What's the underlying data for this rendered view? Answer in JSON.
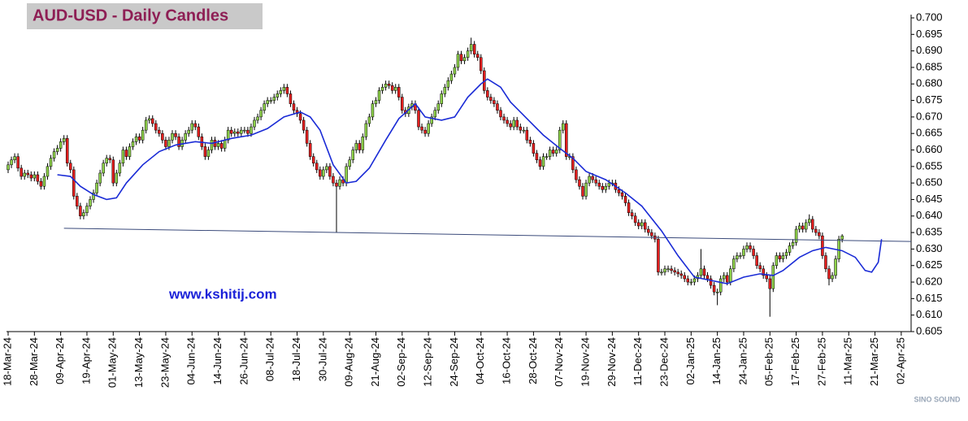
{
  "chart_data": {
    "type": "candlestick",
    "title": "AUD-USD - Daily Candles",
    "annotation": "www.kshitij.com",
    "watermark": "SINO SOUND",
    "up_color": "#8ed14a",
    "down_color": "#e41f1f",
    "open": [
      0.654,
      0.6555,
      0.657,
      0.658,
      0.6545,
      0.652,
      0.653,
      0.6525,
      0.6515,
      0.6525,
      0.6505,
      0.649,
      0.652,
      0.655,
      0.6575,
      0.6595,
      0.6605,
      0.6625,
      0.6635,
      0.656,
      0.654,
      0.646,
      0.643,
      0.64,
      0.641,
      0.643,
      0.645,
      0.647,
      0.65,
      0.653,
      0.656,
      0.6575,
      0.657,
      0.65,
      0.653,
      0.656,
      0.66,
      0.658,
      0.661,
      0.6625,
      0.664,
      0.663,
      0.666,
      0.669,
      0.6695,
      0.668,
      0.666,
      0.665,
      0.663,
      0.661,
      0.663,
      0.665,
      0.664,
      0.661,
      0.663,
      0.665,
      0.666,
      0.668,
      0.667,
      0.664,
      0.661,
      0.658,
      0.66,
      0.663,
      0.661,
      0.662,
      0.6605,
      0.663,
      0.666,
      0.665,
      0.6655,
      0.665,
      0.666,
      0.666,
      0.665,
      0.667,
      0.669,
      0.67,
      0.672,
      0.674,
      0.675,
      0.675,
      0.676,
      0.677,
      0.678,
      0.679,
      0.677,
      0.674,
      0.672,
      0.671,
      0.669,
      0.666,
      0.662,
      0.658,
      0.656,
      0.654,
      0.652,
      0.654,
      0.655,
      0.652,
      0.65,
      0.649,
      0.651,
      0.65,
      0.655,
      0.657,
      0.66,
      0.662,
      0.66,
      0.664,
      0.668,
      0.67,
      0.674,
      0.675,
      0.678,
      0.679,
      0.68,
      0.6795,
      0.678,
      0.679,
      0.676,
      0.672,
      0.671,
      0.673,
      0.674,
      0.672,
      0.667,
      0.666,
      0.665,
      0.668,
      0.67,
      0.672,
      0.674,
      0.677,
      0.679,
      0.681,
      0.683,
      0.685,
      0.689,
      0.687,
      0.688,
      0.69,
      0.692,
      0.689,
      0.688,
      0.684,
      0.678,
      0.676,
      0.675,
      0.674,
      0.672,
      0.67,
      0.669,
      0.668,
      0.667,
      0.669,
      0.667,
      0.666,
      0.666,
      0.663,
      0.662,
      0.659,
      0.657,
      0.655,
      0.658,
      0.658,
      0.66,
      0.659,
      0.66,
      0.666,
      0.668,
      0.658,
      0.658,
      0.654,
      0.651,
      0.649,
      0.646,
      0.65,
      0.652,
      0.651,
      0.65,
      0.649,
      0.648,
      0.649,
      0.65,
      0.65,
      0.648,
      0.647,
      0.646,
      0.644,
      0.641,
      0.64,
      0.638,
      0.637,
      0.638,
      0.636,
      0.635,
      0.634,
      0.633,
      0.623,
      0.623,
      0.624,
      0.624,
      0.6235,
      0.623,
      0.6225,
      0.622,
      0.621,
      0.62,
      0.62,
      0.621,
      0.622,
      0.624,
      0.622,
      0.621,
      0.619,
      0.617,
      0.617,
      0.621,
      0.622,
      0.62,
      0.624,
      0.627,
      0.628,
      0.628,
      0.63,
      0.631,
      0.63,
      0.628,
      0.625,
      0.624,
      0.622,
      0.621,
      0.618,
      0.625,
      0.628,
      0.627,
      0.628,
      0.629,
      0.631,
      0.632,
      0.636,
      0.637,
      0.636,
      0.638,
      0.639,
      0.636,
      0.635,
      0.634,
      0.628,
      0.624,
      0.621,
      0.622,
      0.627,
      0.633
    ],
    "high": [
      0.6565,
      0.658,
      0.659,
      0.659,
      0.6555,
      0.654,
      0.654,
      0.6535,
      0.6535,
      0.6535,
      0.6515,
      0.653,
      0.656,
      0.6585,
      0.6605,
      0.6615,
      0.6635,
      0.6645,
      0.6645,
      0.657,
      0.655,
      0.647,
      0.644,
      0.642,
      0.644,
      0.646,
      0.648,
      0.651,
      0.654,
      0.657,
      0.6585,
      0.6585,
      0.658,
      0.654,
      0.657,
      0.661,
      0.661,
      0.662,
      0.6635,
      0.665,
      0.665,
      0.667,
      0.67,
      0.6705,
      0.6705,
      0.669,
      0.667,
      0.666,
      0.664,
      0.664,
      0.666,
      0.666,
      0.665,
      0.664,
      0.666,
      0.667,
      0.669,
      0.669,
      0.668,
      0.665,
      0.662,
      0.661,
      0.664,
      0.664,
      0.663,
      0.663,
      0.664,
      0.667,
      0.667,
      0.6665,
      0.6665,
      0.667,
      0.667,
      0.667,
      0.668,
      0.67,
      0.671,
      0.673,
      0.675,
      0.676,
      0.676,
      0.677,
      0.678,
      0.679,
      0.68,
      0.68,
      0.678,
      0.675,
      0.673,
      0.672,
      0.67,
      0.667,
      0.663,
      0.659,
      0.657,
      0.655,
      0.655,
      0.656,
      0.656,
      0.653,
      0.651,
      0.652,
      0.652,
      0.656,
      0.658,
      0.661,
      0.663,
      0.663,
      0.665,
      0.669,
      0.671,
      0.675,
      0.676,
      0.679,
      0.68,
      0.681,
      0.681,
      0.6805,
      0.68,
      0.68,
      0.677,
      0.673,
      0.674,
      0.675,
      0.675,
      0.673,
      0.668,
      0.667,
      0.669,
      0.671,
      0.673,
      0.675,
      0.678,
      0.68,
      0.682,
      0.684,
      0.686,
      0.69,
      0.69,
      0.689,
      0.691,
      0.694,
      0.693,
      0.69,
      0.689,
      0.685,
      0.679,
      0.677,
      0.676,
      0.675,
      0.673,
      0.671,
      0.67,
      0.669,
      0.67,
      0.67,
      0.668,
      0.667,
      0.667,
      0.664,
      0.663,
      0.66,
      0.658,
      0.659,
      0.659,
      0.661,
      0.661,
      0.661,
      0.667,
      0.669,
      0.669,
      0.659,
      0.659,
      0.655,
      0.652,
      0.65,
      0.651,
      0.653,
      0.653,
      0.652,
      0.651,
      0.65,
      0.65,
      0.651,
      0.651,
      0.651,
      0.649,
      0.648,
      0.647,
      0.645,
      0.642,
      0.641,
      0.639,
      0.639,
      0.639,
      0.637,
      0.636,
      0.635,
      0.634,
      0.624,
      0.625,
      0.625,
      0.625,
      0.6245,
      0.624,
      0.6235,
      0.623,
      0.622,
      0.621,
      0.622,
      0.623,
      0.63,
      0.625,
      0.623,
      0.622,
      0.62,
      0.618,
      0.622,
      0.623,
      0.623,
      0.625,
      0.628,
      0.629,
      0.629,
      0.631,
      0.632,
      0.632,
      0.631,
      0.629,
      0.626,
      0.625,
      0.623,
      0.622,
      0.626,
      0.629,
      0.629,
      0.629,
      0.63,
      0.632,
      0.633,
      0.637,
      0.638,
      0.638,
      0.639,
      0.6405,
      0.64,
      0.637,
      0.636,
      0.635,
      0.629,
      0.625,
      0.623,
      0.628,
      0.634,
      0.6345
    ],
    "low": [
      0.653,
      0.6545,
      0.656,
      0.6535,
      0.651,
      0.651,
      0.6515,
      0.6505,
      0.6505,
      0.6495,
      0.648,
      0.648,
      0.651,
      0.654,
      0.6565,
      0.6585,
      0.6595,
      0.6615,
      0.655,
      0.653,
      0.645,
      0.642,
      0.639,
      0.639,
      0.64,
      0.642,
      0.644,
      0.646,
      0.649,
      0.652,
      0.655,
      0.656,
      0.649,
      0.649,
      0.652,
      0.655,
      0.657,
      0.657,
      0.66,
      0.6615,
      0.662,
      0.662,
      0.665,
      0.668,
      0.667,
      0.665,
      0.664,
      0.662,
      0.66,
      0.66,
      0.662,
      0.663,
      0.66,
      0.66,
      0.662,
      0.664,
      0.665,
      0.666,
      0.663,
      0.66,
      0.657,
      0.657,
      0.659,
      0.66,
      0.66,
      0.6595,
      0.6595,
      0.662,
      0.664,
      0.664,
      0.664,
      0.664,
      0.665,
      0.664,
      0.664,
      0.666,
      0.668,
      0.669,
      0.671,
      0.673,
      0.674,
      0.674,
      0.675,
      0.676,
      0.677,
      0.676,
      0.673,
      0.671,
      0.67,
      0.668,
      0.665,
      0.661,
      0.657,
      0.655,
      0.653,
      0.651,
      0.651,
      0.653,
      0.651,
      0.649,
      0.635,
      0.648,
      0.649,
      0.649,
      0.654,
      0.656,
      0.659,
      0.659,
      0.659,
      0.663,
      0.667,
      0.669,
      0.673,
      0.674,
      0.677,
      0.678,
      0.6785,
      0.677,
      0.677,
      0.675,
      0.671,
      0.67,
      0.67,
      0.672,
      0.671,
      0.666,
      0.665,
      0.664,
      0.664,
      0.667,
      0.669,
      0.671,
      0.673,
      0.676,
      0.678,
      0.68,
      0.682,
      0.684,
      0.686,
      0.686,
      0.687,
      0.689,
      0.688,
      0.687,
      0.683,
      0.677,
      0.675,
      0.674,
      0.673,
      0.671,
      0.669,
      0.668,
      0.667,
      0.666,
      0.666,
      0.666,
      0.665,
      0.665,
      0.662,
      0.661,
      0.658,
      0.656,
      0.654,
      0.654,
      0.657,
      0.657,
      0.658,
      0.658,
      0.659,
      0.665,
      0.657,
      0.657,
      0.653,
      0.65,
      0.648,
      0.645,
      0.645,
      0.649,
      0.65,
      0.649,
      0.648,
      0.647,
      0.647,
      0.648,
      0.649,
      0.647,
      0.646,
      0.645,
      0.643,
      0.64,
      0.639,
      0.637,
      0.636,
      0.636,
      0.635,
      0.634,
      0.633,
      0.632,
      0.622,
      0.622,
      0.622,
      0.623,
      0.6225,
      0.622,
      0.6215,
      0.621,
      0.62,
      0.619,
      0.619,
      0.619,
      0.62,
      0.621,
      0.621,
      0.62,
      0.618,
      0.616,
      0.613,
      0.616,
      0.62,
      0.619,
      0.619,
      0.623,
      0.626,
      0.627,
      0.627,
      0.629,
      0.629,
      0.627,
      0.624,
      0.623,
      0.621,
      0.62,
      0.6095,
      0.617,
      0.624,
      0.626,
      0.626,
      0.627,
      0.628,
      0.63,
      0.631,
      0.635,
      0.635,
      0.635,
      0.637,
      0.635,
      0.634,
      0.633,
      0.627,
      0.623,
      0.619,
      0.62,
      0.621,
      0.626,
      0.632
    ],
    "close": [
      0.6555,
      0.657,
      0.658,
      0.6545,
      0.652,
      0.653,
      0.6525,
      0.6515,
      0.6525,
      0.6505,
      0.649,
      0.652,
      0.655,
      0.6575,
      0.6595,
      0.6605,
      0.6625,
      0.6635,
      0.656,
      0.654,
      0.646,
      0.643,
      0.64,
      0.641,
      0.643,
      0.645,
      0.647,
      0.65,
      0.653,
      0.656,
      0.6575,
      0.657,
      0.65,
      0.653,
      0.656,
      0.66,
      0.658,
      0.661,
      0.6625,
      0.664,
      0.663,
      0.666,
      0.669,
      0.6695,
      0.668,
      0.666,
      0.665,
      0.663,
      0.661,
      0.663,
      0.665,
      0.664,
      0.661,
      0.663,
      0.665,
      0.666,
      0.668,
      0.667,
      0.664,
      0.661,
      0.658,
      0.66,
      0.663,
      0.661,
      0.662,
      0.6605,
      0.663,
      0.666,
      0.665,
      0.6655,
      0.665,
      0.666,
      0.666,
      0.665,
      0.667,
      0.669,
      0.67,
      0.672,
      0.674,
      0.675,
      0.675,
      0.676,
      0.677,
      0.678,
      0.679,
      0.677,
      0.674,
      0.672,
      0.671,
      0.669,
      0.666,
      0.662,
      0.658,
      0.656,
      0.654,
      0.652,
      0.654,
      0.655,
      0.652,
      0.65,
      0.649,
      0.651,
      0.65,
      0.655,
      0.657,
      0.66,
      0.662,
      0.66,
      0.664,
      0.668,
      0.67,
      0.674,
      0.675,
      0.678,
      0.679,
      0.68,
      0.6795,
      0.678,
      0.679,
      0.676,
      0.672,
      0.671,
      0.673,
      0.674,
      0.672,
      0.667,
      0.666,
      0.665,
      0.668,
      0.67,
      0.672,
      0.674,
      0.677,
      0.679,
      0.681,
      0.683,
      0.685,
      0.689,
      0.687,
      0.688,
      0.69,
      0.692,
      0.689,
      0.688,
      0.684,
      0.678,
      0.676,
      0.675,
      0.674,
      0.672,
      0.67,
      0.669,
      0.668,
      0.667,
      0.669,
      0.667,
      0.666,
      0.666,
      0.663,
      0.662,
      0.659,
      0.657,
      0.655,
      0.658,
      0.658,
      0.66,
      0.659,
      0.66,
      0.666,
      0.668,
      0.658,
      0.658,
      0.654,
      0.651,
      0.649,
      0.646,
      0.65,
      0.652,
      0.651,
      0.65,
      0.649,
      0.648,
      0.649,
      0.65,
      0.65,
      0.648,
      0.647,
      0.646,
      0.644,
      0.641,
      0.64,
      0.638,
      0.637,
      0.638,
      0.636,
      0.635,
      0.634,
      0.633,
      0.623,
      0.623,
      0.624,
      0.624,
      0.6235,
      0.623,
      0.6225,
      0.622,
      0.621,
      0.62,
      0.62,
      0.621,
      0.622,
      0.624,
      0.622,
      0.621,
      0.619,
      0.617,
      0.617,
      0.621,
      0.622,
      0.62,
      0.624,
      0.627,
      0.628,
      0.628,
      0.63,
      0.631,
      0.63,
      0.628,
      0.625,
      0.624,
      0.622,
      0.621,
      0.618,
      0.625,
      0.628,
      0.627,
      0.628,
      0.629,
      0.631,
      0.632,
      0.636,
      0.637,
      0.636,
      0.638,
      0.639,
      0.636,
      0.635,
      0.634,
      0.628,
      0.624,
      0.621,
      0.622,
      0.627,
      0.633,
      0.634
    ],
    "moving_average": {
      "color": "#1a2bd6",
      "x": [
        15,
        19,
        22,
        26,
        30,
        33,
        36,
        41,
        46,
        51,
        57,
        62,
        68,
        74,
        79,
        84,
        89,
        92,
        95,
        99,
        103,
        106,
        110,
        115,
        119,
        124,
        127,
        132,
        136,
        140,
        144,
        146,
        150,
        153,
        158,
        163,
        168,
        172,
        176,
        182,
        188,
        193,
        199,
        204,
        209,
        214,
        219,
        224,
        229,
        233,
        236,
        241,
        245,
        249,
        254,
        258,
        261,
        263,
        265,
        266
      ],
      "values": [
        0.6525,
        0.652,
        0.649,
        0.6465,
        0.645,
        0.6455,
        0.65,
        0.6555,
        0.6595,
        0.6615,
        0.6625,
        0.662,
        0.6635,
        0.6645,
        0.6665,
        0.67,
        0.6715,
        0.67,
        0.666,
        0.6555,
        0.65,
        0.6505,
        0.6545,
        0.663,
        0.6695,
        0.674,
        0.67,
        0.669,
        0.67,
        0.676,
        0.68,
        0.6815,
        0.679,
        0.6745,
        0.6695,
        0.6645,
        0.6605,
        0.6575,
        0.6535,
        0.651,
        0.647,
        0.643,
        0.6355,
        0.628,
        0.6215,
        0.6205,
        0.6195,
        0.6215,
        0.6225,
        0.622,
        0.6235,
        0.6275,
        0.6295,
        0.6305,
        0.6295,
        0.6275,
        0.6235,
        0.623,
        0.626,
        0.633
      ]
    },
    "trendline": {
      "color": "#3a4a7a",
      "x": [
        17,
        275
      ],
      "y": [
        0.6363,
        0.6323
      ]
    },
    "xlim": [
      0,
      275
    ],
    "xticks": [
      {
        "value": 0,
        "label": "18-Mar-24"
      },
      {
        "value": 8,
        "label": "28-Mar-24"
      },
      {
        "value": 16,
        "label": "09-Apr-24"
      },
      {
        "value": 24,
        "label": "19-Apr-24"
      },
      {
        "value": 32,
        "label": "01-May-24"
      },
      {
        "value": 40,
        "label": "13-May-24"
      },
      {
        "value": 48,
        "label": "23-May-24"
      },
      {
        "value": 56,
        "label": "04-Jun-24"
      },
      {
        "value": 64,
        "label": "14-Jun-24"
      },
      {
        "value": 72,
        "label": "26-Jun-24"
      },
      {
        "value": 80,
        "label": "08-Jul-24"
      },
      {
        "value": 88,
        "label": "18-Jul-24"
      },
      {
        "value": 96,
        "label": "30-Jul-24"
      },
      {
        "value": 104,
        "label": "09-Aug-24"
      },
      {
        "value": 112,
        "label": "21-Aug-24"
      },
      {
        "value": 120,
        "label": "02-Sep-24"
      },
      {
        "value": 128,
        "label": "12-Sep-24"
      },
      {
        "value": 136,
        "label": "24-Sep-24"
      },
      {
        "value": 144,
        "label": "04-Oct-24"
      },
      {
        "value": 152,
        "label": "16-Oct-24"
      },
      {
        "value": 160,
        "label": "28-Oct-24"
      },
      {
        "value": 168,
        "label": "07-Nov-24"
      },
      {
        "value": 176,
        "label": "19-Nov-24"
      },
      {
        "value": 184,
        "label": "29-Nov-24"
      },
      {
        "value": 192,
        "label": "11-Dec-24"
      },
      {
        "value": 200,
        "label": "23-Dec-24"
      },
      {
        "value": 208,
        "label": "02-Jan-25"
      },
      {
        "value": 216,
        "label": "14-Jan-25"
      },
      {
        "value": 224,
        "label": "24-Jan-25"
      },
      {
        "value": 232,
        "label": "05-Feb-25"
      },
      {
        "value": 240,
        "label": "17-Feb-25"
      },
      {
        "value": 248,
        "label": "27-Feb-25"
      },
      {
        "value": 256,
        "label": "11-Mar-25"
      },
      {
        "value": 264,
        "label": "21-Mar-25"
      },
      {
        "value": 272,
        "label": "02-Apr-25"
      }
    ],
    "ylim": [
      0.605,
      0.7
    ],
    "yticks": [
      0.605,
      {
        "value": 0.61,
        "label": "0.610"
      },
      0.615,
      {
        "value": 0.62,
        "label": "0.620"
      },
      0.625,
      {
        "value": 0.63,
        "label": "0.630"
      },
      0.635,
      {
        "value": 0.64,
        "label": "0.640"
      },
      0.645,
      {
        "value": 0.65,
        "label": "0.650"
      },
      0.655,
      {
        "value": 0.66,
        "label": "0.660"
      },
      0.665,
      {
        "value": 0.67,
        "label": "0.670"
      },
      0.675,
      {
        "value": 0.68,
        "label": "0.680"
      },
      0.685,
      {
        "value": 0.69,
        "label": "0.690"
      },
      0.695,
      {
        "value": 0.7,
        "label": "0.700"
      }
    ]
  }
}
